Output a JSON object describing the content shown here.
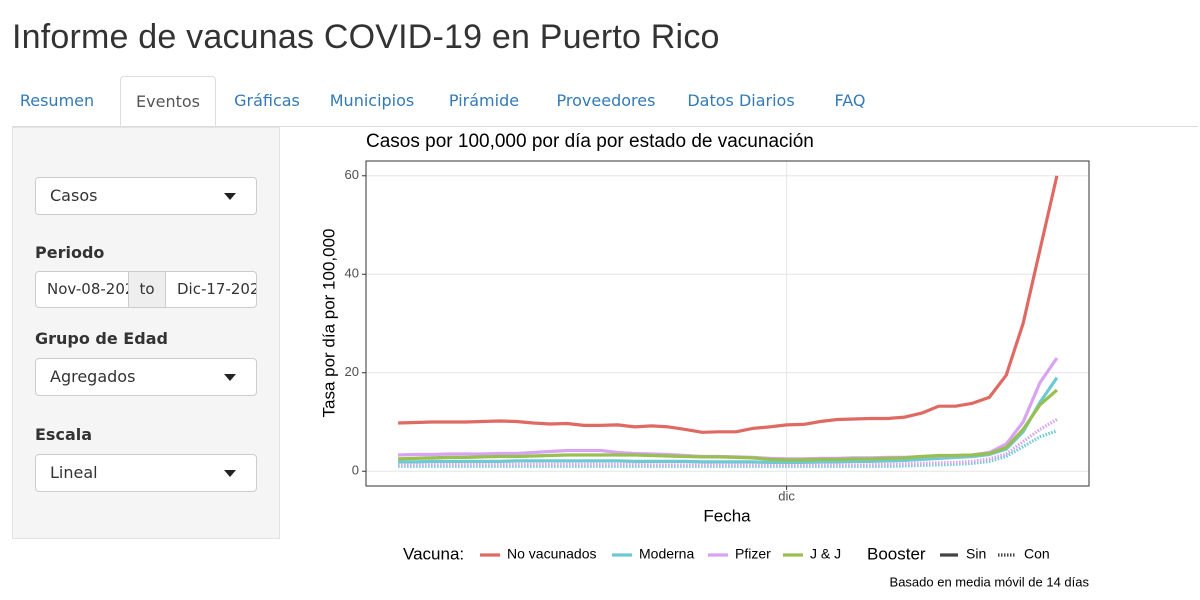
{
  "header": {
    "title": "Informe de vacunas COVID-19 en Puerto Rico"
  },
  "tabs": [
    "Resumen",
    "Eventos",
    "Gráficas",
    "Municipios",
    "Pirámide",
    "Proveedores",
    "Datos Diarios",
    "FAQ"
  ],
  "active_tab": 1,
  "sidebar": {
    "measure": "Casos",
    "period": {
      "label": "Periodo",
      "start": "Nov-08-202",
      "separator": "to",
      "end": "Dic-17-202"
    },
    "age_group": {
      "label": "Grupo de Edad",
      "value": "Agregados"
    },
    "scale": {
      "label": "Escala",
      "value": "Lineal"
    }
  },
  "chart_data": {
    "type": "line",
    "title": "Casos por 100,000 por día por estado de vacunación",
    "x_label": "Fecha",
    "y_label": "Tasa por día por 100,000",
    "caption": "Basado en media móvil de 14 días",
    "categories": [
      null,
      null,
      null,
      null,
      null,
      null,
      null,
      null,
      null,
      null,
      null,
      null,
      null,
      null,
      null,
      null,
      null,
      null,
      null,
      null,
      null,
      null,
      null,
      "dic",
      null,
      null,
      null,
      null,
      null,
      null,
      null,
      null,
      null,
      null,
      null,
      null,
      null,
      null,
      null,
      null
    ],
    "ylim": [
      -3,
      63
    ],
    "yticks": [
      0,
      20,
      40,
      60
    ],
    "grid": true,
    "legend": {
      "vacuna_title": "Vacuna:",
      "vacuna": [
        {
          "name": "No vacunados",
          "color": "#df6a64"
        },
        {
          "name": "Moderna",
          "color": "#6ccad3"
        },
        {
          "name": "Pfizer",
          "color": "#d7a3f2"
        },
        {
          "name": "J & J",
          "color": "#99bf50"
        }
      ],
      "booster_title": "Booster",
      "booster": [
        {
          "name": "Sin",
          "dash": "solid"
        },
        {
          "name": "Con",
          "dash": "dotted"
        }
      ]
    },
    "series": [
      {
        "vacuna": 1,
        "booster": 1,
        "values": [
          1.0,
          1.0,
          1.0,
          1.0,
          1.0,
          1.0,
          1.0,
          1.0,
          1.0,
          1.0,
          1.0,
          1.0,
          1.0,
          1.0,
          1.0,
          1.0,
          1.0,
          1.0,
          1.0,
          1.0,
          1.0,
          1.0,
          1.0,
          1.0,
          1.0,
          1.0,
          1.0,
          1.0,
          1.0,
          1.0,
          1.1,
          1.2,
          1.3,
          1.4,
          1.6,
          2.0,
          3.0,
          5,
          7,
          8.2
        ]
      },
      {
        "vacuna": 2,
        "booster": 1,
        "values": [
          1.4,
          1.4,
          1.4,
          1.4,
          1.4,
          1.4,
          1.4,
          1.4,
          1.4,
          1.4,
          1.4,
          1.4,
          1.4,
          1.4,
          1.4,
          1.3,
          1.3,
          1.3,
          1.3,
          1.3,
          1.3,
          1.3,
          1.3,
          1.3,
          1.3,
          1.3,
          1.3,
          1.3,
          1.3,
          1.4,
          1.5,
          1.6,
          1.7,
          1.8,
          2.0,
          2.5,
          3.5,
          6,
          8.5,
          10.5
        ]
      },
      {
        "vacuna": 1,
        "booster": 0,
        "values": [
          1.9,
          1.9,
          2.0,
          2.0,
          2.0,
          2.0,
          2.0,
          2.1,
          2.1,
          2.1,
          2.1,
          2.1,
          2.1,
          2.1,
          2.0,
          2.0,
          2.0,
          2.0,
          1.9,
          1.9,
          1.9,
          1.9,
          1.8,
          1.8,
          1.8,
          1.9,
          1.9,
          2.0,
          2.0,
          2.1,
          2.2,
          2.4,
          2.6,
          2.8,
          3.0,
          3.4,
          4.5,
          8,
          14,
          19
        ]
      },
      {
        "vacuna": 2,
        "booster": 0,
        "values": [
          3.3,
          3.4,
          3.4,
          3.5,
          3.5,
          3.5,
          3.6,
          3.6,
          3.8,
          4.0,
          4.2,
          4.2,
          4.2,
          3.8,
          3.6,
          3.5,
          3.4,
          3.2,
          3.0,
          3.0,
          2.9,
          2.8,
          2.6,
          2.5,
          2.5,
          2.6,
          2.6,
          2.7,
          2.7,
          2.8,
          2.8,
          3.0,
          3.1,
          3.2,
          3.3,
          3.8,
          5.5,
          10,
          18,
          23
        ]
      },
      {
        "vacuna": 3,
        "booster": 0,
        "values": [
          2.5,
          2.6,
          2.7,
          2.8,
          2.8,
          2.9,
          3.0,
          3.0,
          3.1,
          3.2,
          3.3,
          3.3,
          3.3,
          3.3,
          3.3,
          3.2,
          3.1,
          3.0,
          2.9,
          2.9,
          2.8,
          2.7,
          2.4,
          2.3,
          2.3,
          2.4,
          2.4,
          2.5,
          2.5,
          2.6,
          2.7,
          3.0,
          3.2,
          3.2,
          3.3,
          3.6,
          4.8,
          8.5,
          13.5,
          16.5
        ]
      },
      {
        "vacuna": 0,
        "booster": 0,
        "values": [
          9.8,
          9.9,
          10,
          10,
          10,
          10.1,
          10.2,
          10.1,
          9.8,
          9.6,
          9.7,
          9.3,
          9.3,
          9.4,
          9,
          9.2,
          9,
          8.5,
          7.9,
          8,
          8,
          8.7,
          9,
          9.4,
          9.5,
          10.1,
          10.5,
          10.6,
          10.7,
          10.7,
          11,
          11.8,
          13.2,
          13.2,
          13.8,
          15,
          19.5,
          30,
          45,
          60
        ]
      }
    ]
  }
}
